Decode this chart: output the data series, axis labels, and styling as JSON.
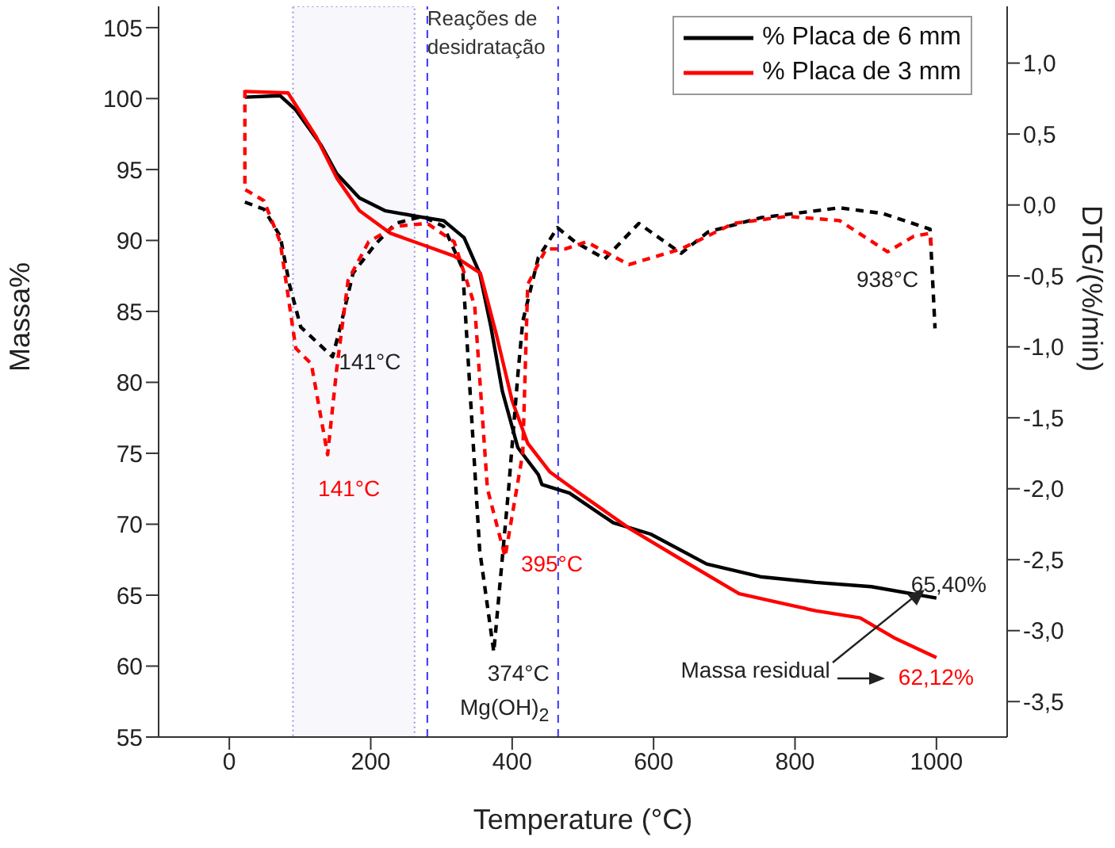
{
  "chart_data": {
    "type": "line",
    "xlabel": "Temperature (°C)",
    "ylabel": "Massa%",
    "y2label": "DTG/(%/min)",
    "xlim": [
      -100,
      1100
    ],
    "xticks": [
      0,
      200,
      400,
      600,
      800,
      1000
    ],
    "ylim": [
      55,
      106.5
    ],
    "yticks": [
      55,
      60,
      65,
      70,
      75,
      80,
      85,
      90,
      95,
      100,
      105
    ],
    "y2lim": [
      -3.75,
      1.4
    ],
    "y2ticks": [
      {
        "value": -3.5,
        "label": "-3,5"
      },
      {
        "value": -3,
        "label": "-3,0"
      },
      {
        "value": -2.5,
        "label": "-2,5"
      },
      {
        "value": -2,
        "label": "-2,0"
      },
      {
        "value": -1.5,
        "label": "-1,5"
      },
      {
        "value": -1,
        "label": "-1,0"
      },
      {
        "value": -0.5,
        "label": "-0,5"
      },
      {
        "value": 0,
        "label": "0,0"
      },
      {
        "value": 0.5,
        "label": "0,5"
      },
      {
        "value": 1,
        "label": "1,0"
      }
    ],
    "legend": "top right",
    "marker": "none",
    "series": [
      {
        "name": "% Placa de 6 mm",
        "color": "#000000",
        "line_style": "solid",
        "x": [
          22,
          72,
          94,
          130,
          152,
          184,
          220,
          265,
          303,
          332,
          354,
          370,
          386,
          408,
          437,
          442,
          481,
          543,
          596,
          675,
          751,
          829,
          908,
          1000
        ],
        "values": [
          100.1,
          100.2,
          99.2,
          96.7,
          94.7,
          93.0,
          92.1,
          91.7,
          91.4,
          90.2,
          87.7,
          83.9,
          79.4,
          75.4,
          73.5,
          72.8,
          72.2,
          70.1,
          69.3,
          67.2,
          66.3,
          65.9,
          65.6,
          64.8
        ]
      },
      {
        "name": "% Placa de 3 mm",
        "color": "#ff0000",
        "line_style": "solid",
        "x": [
          22,
          83,
          123,
          152,
          184,
          228,
          273,
          318,
          355,
          377,
          400,
          422,
          453,
          489,
          566,
          643,
          721,
          829,
          892,
          940,
          1000
        ],
        "values": [
          100.5,
          100.4,
          97.3,
          94.4,
          92.1,
          90.5,
          89.7,
          88.9,
          87.7,
          83.5,
          78.7,
          75.7,
          73.7,
          72.4,
          69.7,
          67.4,
          65.1,
          63.9,
          63.4,
          62.0,
          60.6
        ]
      },
      {
        "color": "#000000",
        "line_style": "dashed",
        "axis": "y2",
        "x": [
          22,
          49,
          72,
          85,
          101,
          146,
          157,
          175,
          206,
          235,
          273,
          303,
          330,
          354,
          374,
          395,
          408,
          415,
          437,
          464,
          489,
          531,
          579,
          639,
          677,
          751,
          863,
          924,
          991,
          998
        ],
        "values": [
          0.02,
          -0.03,
          -0.22,
          -0.56,
          -0.86,
          -1.07,
          -0.86,
          -0.48,
          -0.28,
          -0.13,
          -0.08,
          -0.15,
          -0.45,
          -2.43,
          -3.15,
          -2.0,
          -1.2,
          -0.82,
          -0.37,
          -0.16,
          -0.26,
          -0.38,
          -0.13,
          -0.34,
          -0.19,
          -0.09,
          -0.02,
          -0.06,
          -0.17,
          -0.87
        ]
      },
      {
        "color": "#ff0000",
        "line_style": "dashed",
        "axis": "y2",
        "x": [
          22,
          22,
          49,
          72,
          94,
          116,
          139,
          152,
          168,
          197,
          235,
          280,
          318,
          347,
          365,
          390,
          415,
          422,
          448,
          475,
          505,
          565,
          639,
          713,
          789,
          863,
          931,
          968,
          991,
          993
        ],
        "values": [
          0.81,
          0.11,
          0.03,
          -0.26,
          -1.01,
          -1.12,
          -1.76,
          -1.15,
          -0.53,
          -0.26,
          -0.15,
          -0.13,
          -0.26,
          -0.71,
          -2.0,
          -2.48,
          -1.75,
          -0.56,
          -0.31,
          -0.31,
          -0.26,
          -0.42,
          -0.31,
          -0.13,
          -0.08,
          -0.11,
          -0.33,
          -0.22,
          -0.2,
          -0.3
        ]
      }
    ],
    "ref_lines": [
      {
        "axis": "x",
        "value": 280,
        "color": "#3333ff",
        "line_style": "dashed"
      },
      {
        "axis": "x",
        "value": 465,
        "color": "#3333ff",
        "line_style": "dashed"
      }
    ],
    "bands": [
      {
        "axis": "x",
        "from": 90,
        "to": 262,
        "label": "Reações de desidratação",
        "color": "#9999dd"
      }
    ],
    "annotations": [
      {
        "text": "141°C",
        "x": 146,
        "y": 81.8
      },
      {
        "text": "141°C",
        "x": 139,
        "y": 74.9
      },
      {
        "text": "395°C",
        "x": 390,
        "y": 67.8
      },
      {
        "text": "374°C",
        "x": 374,
        "y": 61.0
      },
      "938°C",
      {
        "text": "65,40%",
        "x": 1000,
        "y": 64.8
      },
      {
        "text": "62,12%",
        "x": 1000,
        "y": 60.6
      },
      {
        "text": "Massa residual",
        "x": 975,
        "y": 64.9
      },
      "Mg(OH)$_{2}$"
    ]
  }
}
